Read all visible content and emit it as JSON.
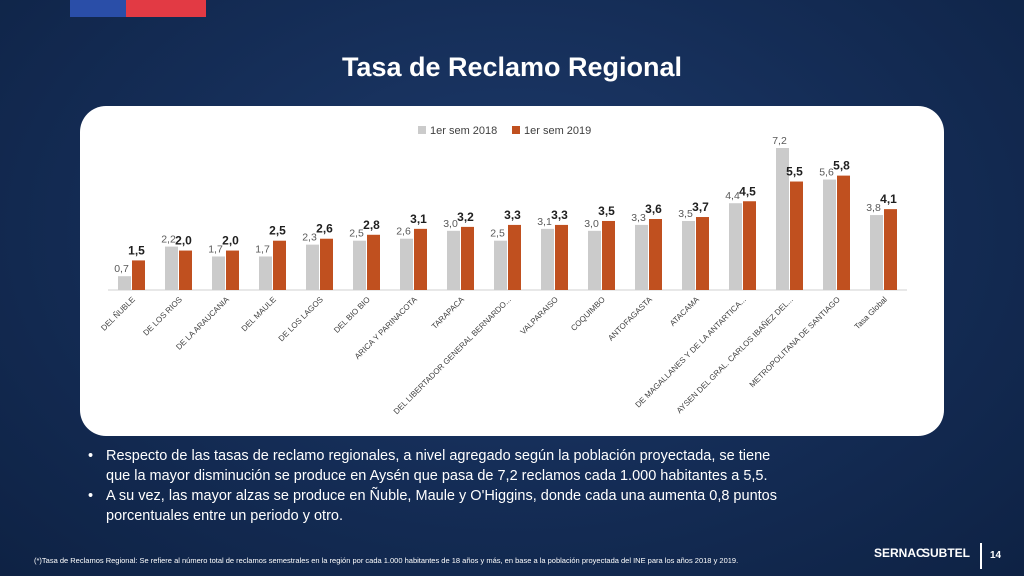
{
  "slide": {
    "title": "Tasa de Reclamo Regional",
    "page_number": "14",
    "bullets": [
      "Respecto de las tasas de reclamo regionales, a nivel agregado según la población proyectada, se tiene que la mayor disminución se produce en Aysén que pasa de 7,2 reclamos cada 1.000 habitantes a 5,5.",
      "A su vez, las mayor alzas se produce en Ñuble, Maule y O'Higgins, donde cada una aumenta 0,8 puntos porcentuales entre un periodo y otro."
    ],
    "footnote": "(*)Tasa de Reclamos Regional: Se refiere al número total de reclamos semestrales en la región por cada 1.000 habitantes de 18 años y más, en base a la población proyectada del INE para los años 2018 y 2019.",
    "logos": {
      "sernac": "SERNAC",
      "subtel": "SUBTEL"
    },
    "colors": {
      "background": "#142c55",
      "flag_blue": "#2a4ea8",
      "flag_red": "#e23a44"
    }
  },
  "chart_data": {
    "type": "bar",
    "title": "",
    "xlabel": "",
    "ylabel": "",
    "ylim": [
      0,
      7.2
    ],
    "grid": false,
    "legend_position": "top",
    "categories": [
      "DEL ÑUBLE",
      "DE LOS RIOS",
      "DE LA ARAUCANIA",
      "DEL MAULE",
      "DE LOS LAGOS",
      "DEL BIO BIO",
      "ARICA Y PARINACOTA",
      "TARAPACA",
      "DEL LIBERTADOR GENERAL BERNARDO...",
      "VALPARAISO",
      "COQUIMBO",
      "ANTOFAGASTA",
      "ATACAMA",
      "DE MAGALLANES Y DE LA ANTARTICA...",
      "AYSEN DEL GRAL. CARLOS IBAÑEZ DEL...",
      "METROPOLITANA DE SANTIAGO",
      "Tasa Global"
    ],
    "series": [
      {
        "name": "1er sem 2018",
        "color": "#cbcbcb",
        "values": [
          0.7,
          2.2,
          1.7,
          1.7,
          2.3,
          2.5,
          2.6,
          3.0,
          2.5,
          3.1,
          3.0,
          3.3,
          3.5,
          4.4,
          7.2,
          5.6,
          3.8
        ],
        "labels": [
          "0,7",
          "2,2",
          "1,7",
          "1,7",
          "2,3",
          "2,5",
          "2,6",
          "3,0",
          "2,5",
          "3,1",
          "3,0",
          "3,3",
          "3,5",
          "4,4",
          "7,2",
          "5,6",
          "3,8"
        ]
      },
      {
        "name": "1er sem 2019",
        "color": "#c0501f",
        "values": [
          1.5,
          2.0,
          2.0,
          2.5,
          2.6,
          2.8,
          3.1,
          3.2,
          3.3,
          3.3,
          3.5,
          3.6,
          3.7,
          4.5,
          5.5,
          5.8,
          4.1
        ],
        "labels": [
          "1,5",
          "2,0",
          "2,0",
          "2,5",
          "2,6",
          "2,8",
          "3,1",
          "3,2",
          "3,3",
          "3,3",
          "3,5",
          "3,6",
          "3,7",
          "4,5",
          "5,5",
          "5,8",
          "4,1"
        ]
      }
    ]
  }
}
